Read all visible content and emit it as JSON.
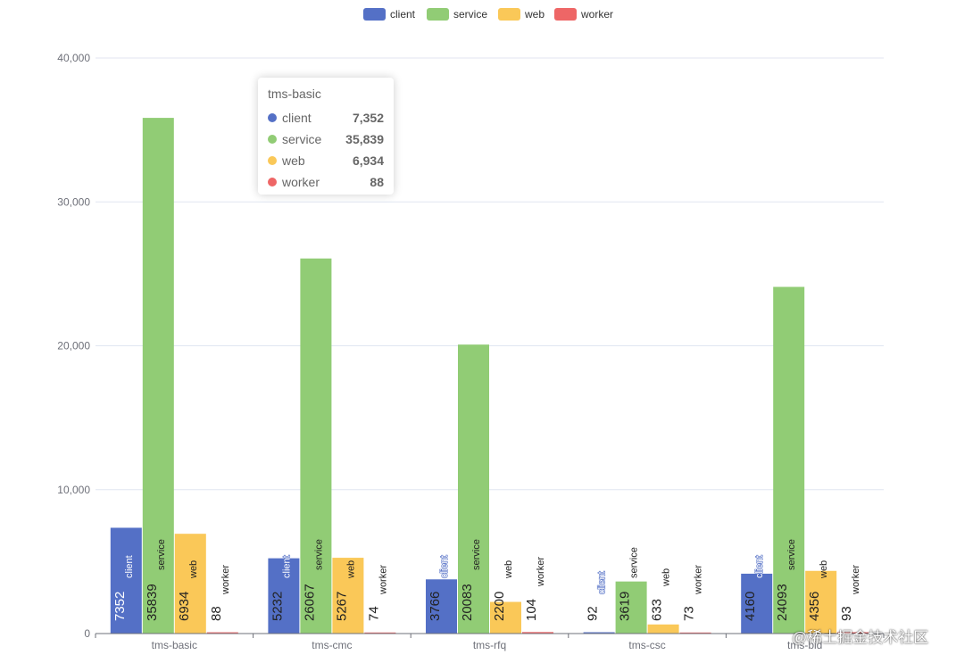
{
  "chart_data": {
    "type": "bar",
    "categories": [
      "tms-basic",
      "tms-cmc",
      "tms-rfq",
      "tms-csc",
      "tms-bid"
    ],
    "series": [
      {
        "name": "client",
        "color": "#5470c6",
        "values": [
          7352,
          5232,
          3766,
          92,
          4160
        ]
      },
      {
        "name": "service",
        "color": "#91cc75",
        "values": [
          35839,
          26067,
          20083,
          3619,
          24093
        ]
      },
      {
        "name": "web",
        "color": "#fac858",
        "values": [
          6934,
          5267,
          2200,
          633,
          4356
        ]
      },
      {
        "name": "worker",
        "color": "#ee6666",
        "values": [
          88,
          74,
          104,
          73,
          93
        ]
      }
    ],
    "y_ticks": [
      "0",
      "10,000",
      "20,000",
      "30,000",
      "40,000"
    ],
    "ylim": [
      0,
      40000
    ],
    "grid": true,
    "legend_position": "top-center",
    "title": "",
    "xlabel": "",
    "ylabel": ""
  },
  "tooltip": {
    "title": "tms-basic",
    "rows": [
      {
        "name": "client",
        "value": "7,352",
        "color": "#5470c6"
      },
      {
        "name": "service",
        "value": "35,839",
        "color": "#91cc75"
      },
      {
        "name": "web",
        "value": "6,934",
        "color": "#fac858"
      },
      {
        "name": "worker",
        "value": "88",
        "color": "#ee6666"
      }
    ]
  },
  "watermark": "@稀土掘金技术社区"
}
